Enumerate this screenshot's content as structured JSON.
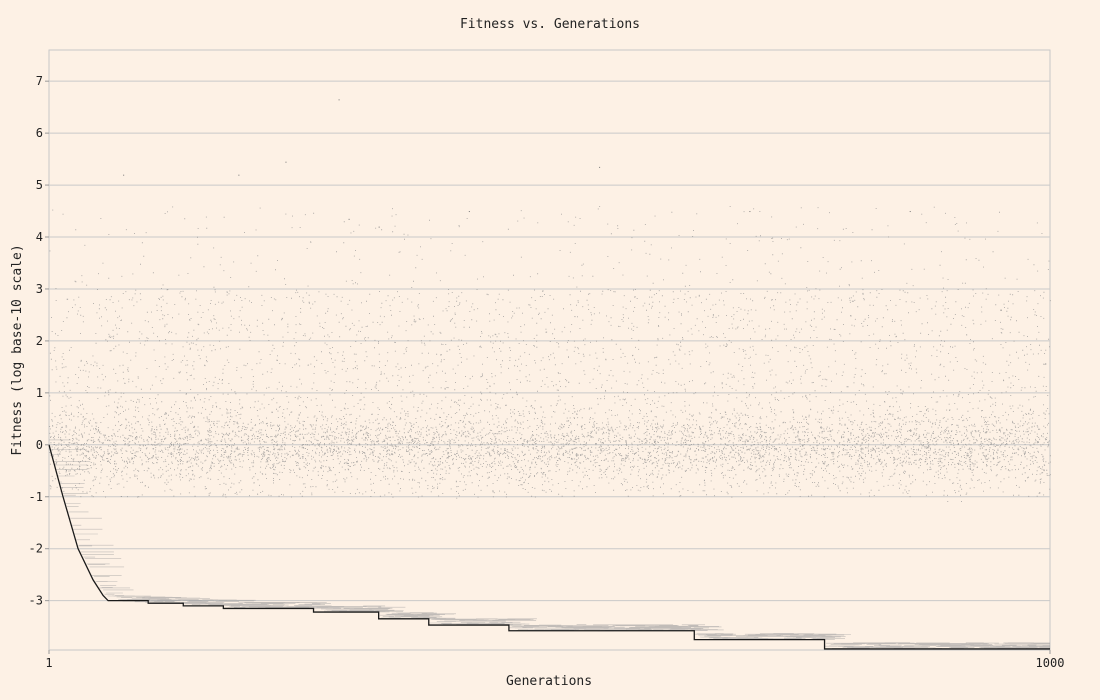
{
  "chart_data": {
    "type": "scatter",
    "title": "Fitness vs. Generations",
    "xlabel": "Generations",
    "ylabel": "Fitness (log base-10 scale)",
    "y_scale": "log10",
    "xlim": [
      1,
      1000
    ],
    "ylim": [
      -3.95,
      7.6
    ],
    "x_tick_labels": [
      "1",
      "1000"
    ],
    "y_tick_labels": [
      "-3",
      "-2",
      "-1",
      "0",
      "1",
      "2",
      "3",
      "4",
      "5",
      "6",
      "7"
    ],
    "grid": true,
    "series": [
      {
        "role": "population",
        "description": "per-generation population fitness values",
        "bulk_range": [
          -1.0,
          3.0
        ],
        "dense_center": 0.0,
        "sparse_max": 6.7
      },
      {
        "role": "best",
        "steps": [
          {
            "x": 1,
            "y": 0.0
          },
          {
            "x": 15,
            "y": -1.0
          },
          {
            "x": 30,
            "y": -2.0
          },
          {
            "x": 45,
            "y": -2.6
          },
          {
            "x": 55,
            "y": -2.9
          },
          {
            "x": 60,
            "y": -3.0
          },
          {
            "x": 100,
            "y": -3.05
          },
          {
            "x": 135,
            "y": -3.1
          },
          {
            "x": 175,
            "y": -3.15
          },
          {
            "x": 265,
            "y": -3.22
          },
          {
            "x": 330,
            "y": -3.35
          },
          {
            "x": 380,
            "y": -3.47
          },
          {
            "x": 460,
            "y": -3.58
          },
          {
            "x": 645,
            "y": -3.75
          },
          {
            "x": 775,
            "y": -3.93
          },
          {
            "x": 1000,
            "y": -3.93
          }
        ]
      }
    ]
  }
}
